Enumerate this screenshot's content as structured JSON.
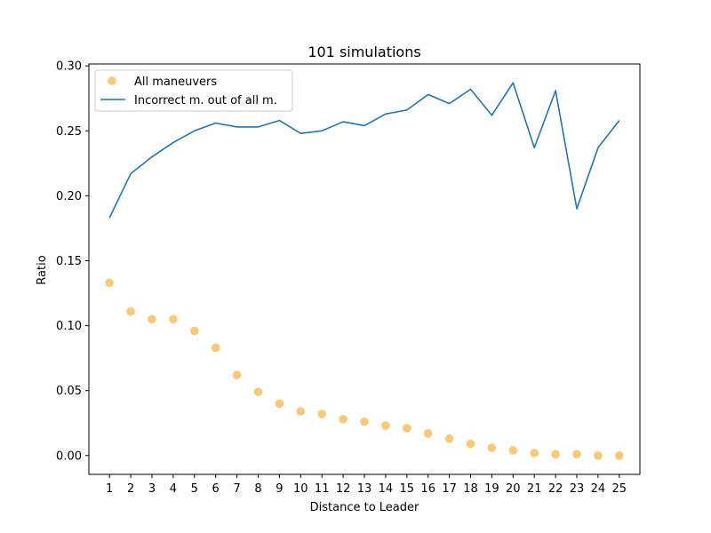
{
  "chart_data": {
    "type": "line",
    "title": "101 simulations",
    "xlabel": "Distance to Leader",
    "ylabel": "Ratio",
    "x": [
      1,
      2,
      3,
      4,
      5,
      6,
      7,
      8,
      9,
      10,
      11,
      12,
      13,
      14,
      15,
      16,
      17,
      18,
      19,
      20,
      21,
      22,
      23,
      24,
      25
    ],
    "xticks": [
      "1",
      "2",
      "3",
      "4",
      "5",
      "6",
      "7",
      "8",
      "9",
      "10",
      "11",
      "12",
      "13",
      "14",
      "15",
      "16",
      "17",
      "18",
      "19",
      "20",
      "21",
      "22",
      "23",
      "24",
      "25"
    ],
    "xlim": [
      0.03,
      25.97
    ],
    "ylim": [
      -0.0145,
      0.3015
    ],
    "yticks": [
      0.0,
      0.05,
      0.1,
      0.15,
      0.2,
      0.25,
      0.3
    ],
    "ytick_labels": [
      "0.00",
      "0.05",
      "0.10",
      "0.15",
      "0.20",
      "0.25",
      "0.30"
    ],
    "grid": false,
    "legend_position": "top-left",
    "series": [
      {
        "name": "All maneuvers",
        "kind": "scatter",
        "color": "#f9bc52",
        "values": [
          0.133,
          0.111,
          0.105,
          0.105,
          0.096,
          0.083,
          0.062,
          0.049,
          0.04,
          0.034,
          0.032,
          0.028,
          0.026,
          0.023,
          0.021,
          0.017,
          0.013,
          0.009,
          0.006,
          0.004,
          0.002,
          0.001,
          0.001,
          0.0,
          0.0
        ]
      },
      {
        "name": "Incorrect m. out of all m.",
        "kind": "line",
        "color": "#1f77b4",
        "values": [
          0.183,
          0.217,
          0.23,
          0.241,
          0.25,
          0.256,
          0.253,
          0.253,
          0.258,
          0.248,
          0.25,
          0.257,
          0.254,
          0.263,
          0.266,
          0.278,
          0.271,
          0.282,
          0.262,
          0.287,
          0.237,
          0.281,
          0.19,
          0.237,
          0.258
        ]
      }
    ]
  }
}
